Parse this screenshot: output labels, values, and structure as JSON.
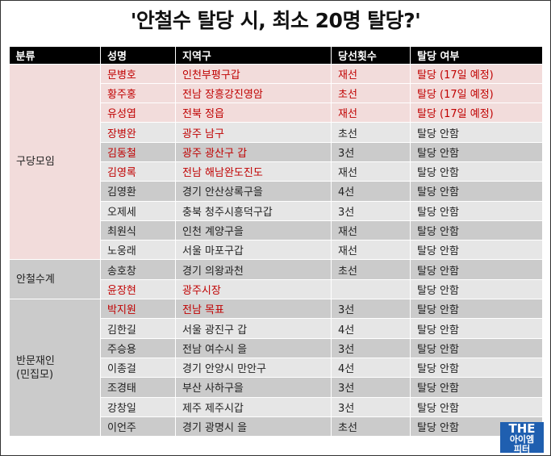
{
  "title": "'안철수 탈당 시, 최소 20명 탈당?'",
  "headers": [
    "분류",
    "성명",
    "지역구",
    "당선횟수",
    "탈당 여부"
  ],
  "groups": [
    "구당모임",
    "안철수계",
    "반문재인\n(민집모)"
  ],
  "rows": [
    {
      "name": "문병호",
      "district": "인천부평구갑",
      "terms": "재선",
      "status": "탈당 (17일 예정)"
    },
    {
      "name": "황주홍",
      "district": "전남 장흥강진영암",
      "terms": "초선",
      "status": "탈당 (17일 예정)"
    },
    {
      "name": "유성엽",
      "district": "전북 정읍",
      "terms": "재선",
      "status": "탈당 (17일 예정)"
    },
    {
      "name": "장병완",
      "district": "광주 남구",
      "terms": "초선",
      "status": "탈당 안함"
    },
    {
      "name": "김동철",
      "district": "광주 광산구 갑",
      "terms": "3선",
      "status": "탈당 안함"
    },
    {
      "name": "김영록",
      "district": "전남 해남완도진도",
      "terms": "재선",
      "status": "탈당 안함"
    },
    {
      "name": "김영환",
      "district": "경기 안산상록구을",
      "terms": "4선",
      "status": "탈당 안함"
    },
    {
      "name": "오제세",
      "district": "충북 청주시흥덕구갑",
      "terms": "3선",
      "status": "탈당 안함"
    },
    {
      "name": "최원식",
      "district": "인천 계양구을",
      "terms": "재선",
      "status": "탈당 안함"
    },
    {
      "name": "노웅래",
      "district": "서울 마포구갑",
      "terms": "재선",
      "status": "탈당 안함"
    },
    {
      "name": "송호창",
      "district": "경기 의왕과천",
      "terms": "초선",
      "status": "탈당 안함"
    },
    {
      "name": "윤장현",
      "district": "광주시장",
      "terms": "",
      "status": "탈당 안함"
    },
    {
      "name": "박지원",
      "district": "전남 목표",
      "terms": "3선",
      "status": "탈당 안함"
    },
    {
      "name": "김한길",
      "district": "서울 광진구 갑",
      "terms": "4선",
      "status": "탈당 안함"
    },
    {
      "name": "주승용",
      "district": "전남 여수시 을",
      "terms": "3선",
      "status": "탈당 안함"
    },
    {
      "name": "이종걸",
      "district": "경기 안양시 만안구",
      "terms": "4선",
      "status": "탈당 안함"
    },
    {
      "name": "조경태",
      "district": "부산 사하구을",
      "terms": "3선",
      "status": "탈당 안함"
    },
    {
      "name": "강창일",
      "district": "제주 제주시갑",
      "terms": "3선",
      "status": "탈당 안함"
    },
    {
      "name": "이언주",
      "district": "경기 광명시 을",
      "terms": "초선",
      "status": "탈당 안함"
    }
  ],
  "logo": {
    "line1": "THE",
    "line2": "아이엠",
    "line3": "피터",
    "color": "#1f5fb0"
  },
  "colors": {
    "highlight_red": "#c00000",
    "pink_row": "#f2dcdb"
  }
}
